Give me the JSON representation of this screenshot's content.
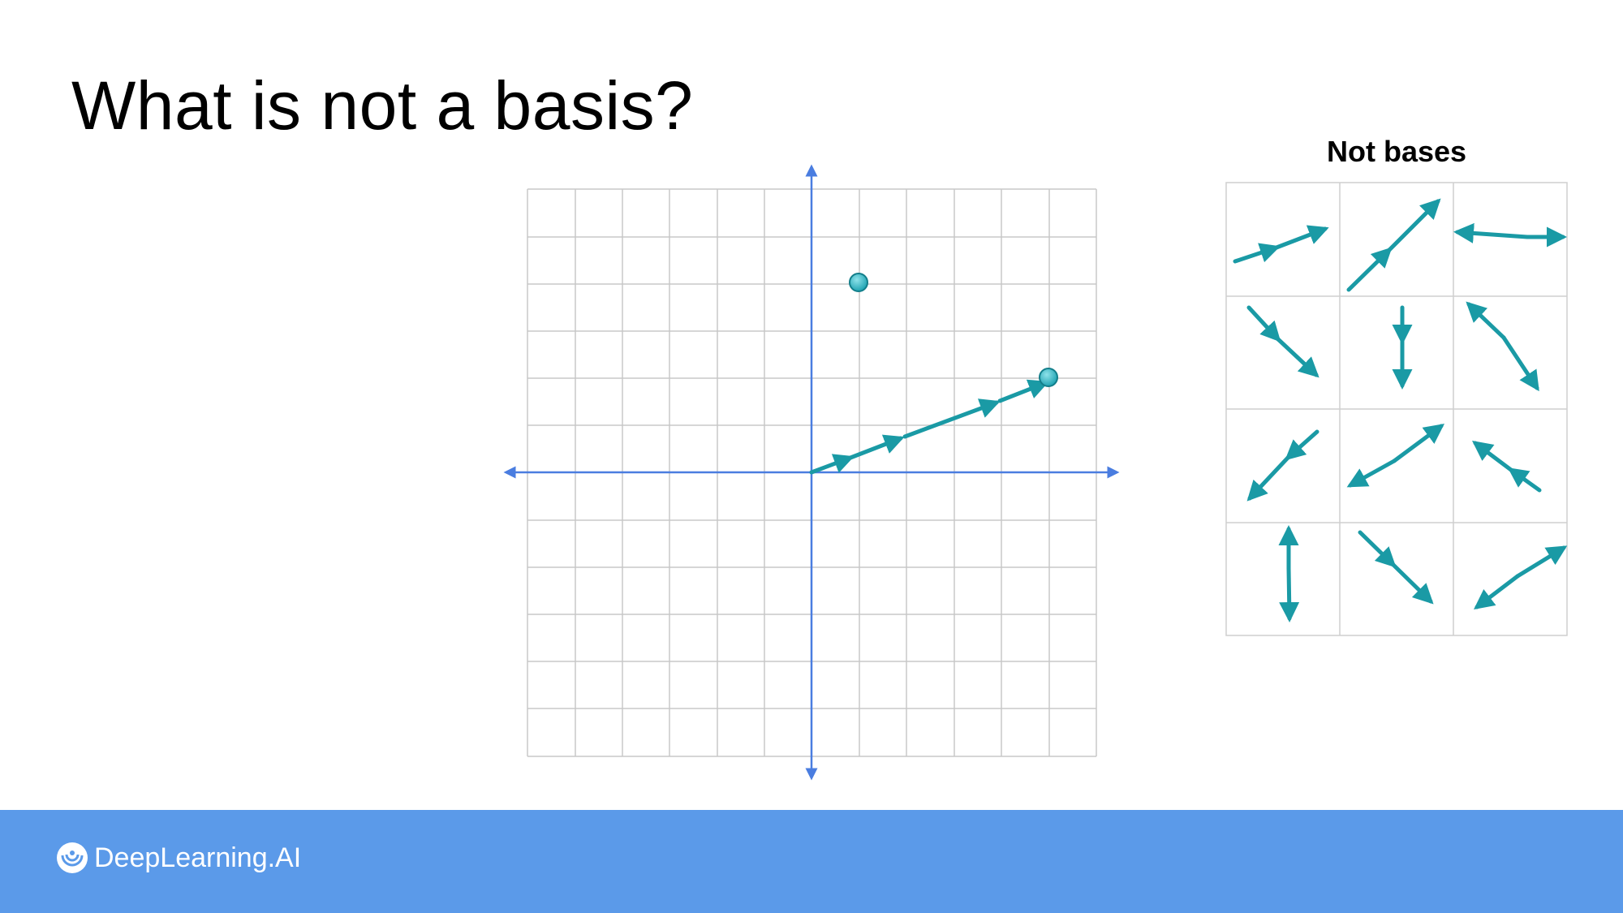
{
  "slide": {
    "title": "What is not a basis?"
  },
  "panel": {
    "title": "Not bases"
  },
  "footer": {
    "logo_text": "DeepLearning.AI"
  },
  "colors": {
    "grid": "#c8c8c8",
    "axis": "#4a7de0",
    "vector": "#1a9aa5",
    "point": "#3bbccc",
    "footer": "#5b9ae9"
  },
  "icons": {
    "logo": "deeplearning-logo-icon"
  }
}
